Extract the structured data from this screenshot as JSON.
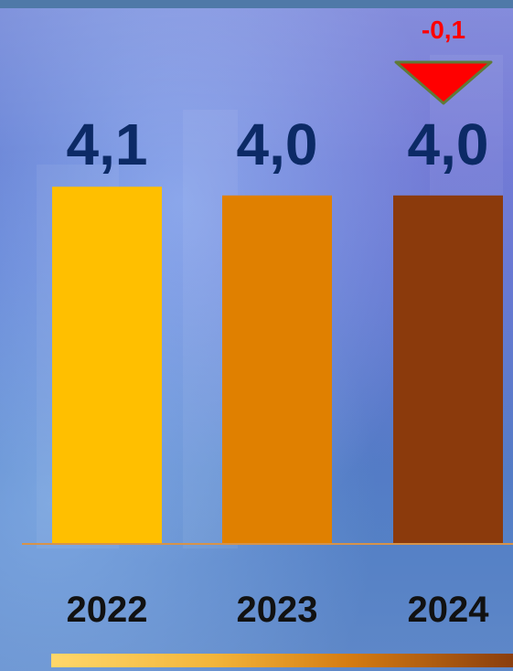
{
  "chart_data": {
    "type": "bar",
    "categories": [
      "2022",
      "2023",
      "2024"
    ],
    "values": [
      4.1,
      4.0,
      4.0
    ],
    "value_labels": [
      "4,1",
      "4,0",
      "4,0"
    ],
    "bar_colors": [
      "#ffbf00",
      "#e08000",
      "#8b3a0c"
    ],
    "change": {
      "label": "-0,1",
      "category": "2024",
      "direction": "down",
      "color": "#ff0000"
    },
    "value_label_color": "#0c2a66",
    "category_label_color": "#111111",
    "baseline_color": "#d6934a",
    "title": "",
    "xlabel": "",
    "ylabel": "",
    "grid": false
  }
}
